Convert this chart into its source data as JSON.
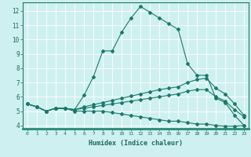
{
  "xlabel": "Humidex (Indice chaleur)",
  "bg_color": "#cff0f0",
  "grid_color": "#aadddd",
  "line_color": "#1a7a6a",
  "xlim": [
    -0.5,
    23.5
  ],
  "ylim": [
    3.8,
    12.6
  ],
  "xticks": [
    0,
    1,
    2,
    3,
    4,
    5,
    6,
    7,
    8,
    9,
    10,
    11,
    12,
    13,
    14,
    15,
    16,
    17,
    18,
    19,
    20,
    21,
    22,
    23
  ],
  "yticks": [
    4,
    5,
    6,
    7,
    8,
    9,
    10,
    11,
    12
  ],
  "line1_x": [
    0,
    1,
    2,
    3,
    4,
    5,
    6,
    7,
    8,
    9,
    10,
    11,
    12,
    13,
    14,
    15,
    16,
    17,
    18,
    19,
    20,
    21,
    22,
    23
  ],
  "line1_y": [
    5.5,
    5.3,
    5.0,
    5.2,
    5.2,
    5.1,
    6.1,
    7.4,
    9.2,
    9.2,
    10.5,
    11.5,
    12.3,
    11.9,
    11.5,
    11.1,
    10.7,
    8.3,
    7.5,
    7.5,
    5.9,
    5.6,
    4.7,
    4.0
  ],
  "line2_x": [
    0,
    1,
    2,
    3,
    4,
    5,
    6,
    7,
    8,
    9,
    10,
    11,
    12,
    13,
    14,
    15,
    16,
    17,
    18,
    19,
    20,
    21,
    22,
    23
  ],
  "line2_y": [
    5.5,
    5.3,
    5.0,
    5.2,
    5.2,
    5.1,
    5.3,
    5.45,
    5.6,
    5.75,
    5.9,
    6.05,
    6.2,
    6.35,
    6.5,
    6.6,
    6.7,
    7.0,
    7.2,
    7.3,
    6.6,
    6.2,
    5.5,
    4.7
  ],
  "line3_x": [
    0,
    1,
    2,
    3,
    4,
    5,
    6,
    7,
    8,
    9,
    10,
    11,
    12,
    13,
    14,
    15,
    16,
    17,
    18,
    19,
    20,
    21,
    22,
    23
  ],
  "line3_y": [
    5.5,
    5.3,
    5.0,
    5.2,
    5.2,
    5.1,
    5.2,
    5.3,
    5.4,
    5.5,
    5.6,
    5.7,
    5.8,
    5.9,
    6.0,
    6.1,
    6.2,
    6.4,
    6.5,
    6.5,
    6.0,
    5.7,
    5.1,
    4.6
  ],
  "line4_x": [
    0,
    1,
    2,
    3,
    4,
    5,
    6,
    7,
    8,
    9,
    10,
    11,
    12,
    13,
    14,
    15,
    16,
    17,
    18,
    19,
    20,
    21,
    22,
    23
  ],
  "line4_y": [
    5.5,
    5.3,
    5.0,
    5.2,
    5.2,
    5.0,
    5.0,
    5.0,
    5.0,
    4.9,
    4.8,
    4.7,
    4.6,
    4.5,
    4.4,
    4.3,
    4.3,
    4.2,
    4.1,
    4.1,
    4.0,
    3.95,
    3.95,
    4.0
  ]
}
